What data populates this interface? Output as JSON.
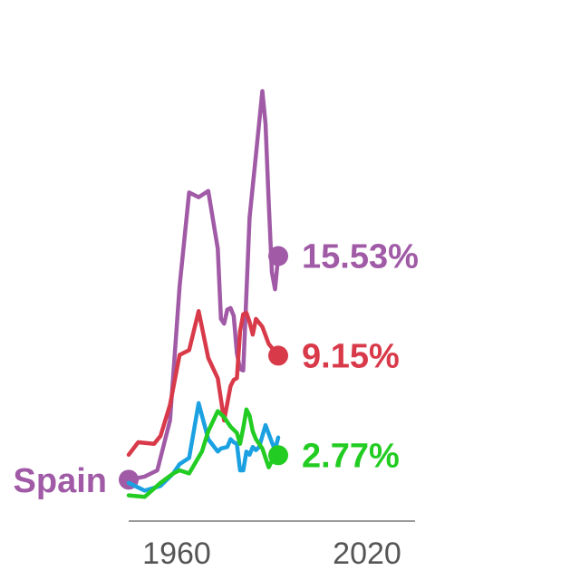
{
  "chart_data": {
    "type": "line",
    "title": "",
    "xlabel": "",
    "ylabel": "",
    "xlim": [
      1945,
      2035
    ],
    "ylim": [
      0,
      27
    ],
    "x_ticks": [
      "1960",
      "2020"
    ],
    "grid": false,
    "legend": "none",
    "start_label": {
      "text": "Spain",
      "color": "#a05aa6"
    },
    "series": [
      {
        "name": "Spain",
        "color": "#a05aa6",
        "end_label": "15.53%",
        "show_start_marker": true,
        "points": [
          [
            1945,
            1.2
          ],
          [
            1950,
            1.4
          ],
          [
            1954,
            1.8
          ],
          [
            1958,
            5.0
          ],
          [
            1961,
            13.6
          ],
          [
            1964,
            19.6
          ],
          [
            1967,
            19.3
          ],
          [
            1970,
            19.7
          ],
          [
            1973,
            16.0
          ],
          [
            1974,
            11.5
          ],
          [
            1975,
            11.2
          ],
          [
            1976,
            12.1
          ],
          [
            1977,
            12.2
          ],
          [
            1978,
            11.7
          ],
          [
            1979,
            9.3
          ],
          [
            1980,
            8.3
          ],
          [
            1981,
            8.2
          ],
          [
            1983,
            18.0
          ],
          [
            1985,
            22.0
          ],
          [
            1987,
            26.1
          ],
          [
            1988,
            24.0
          ],
          [
            1989,
            19.0
          ],
          [
            1990,
            14.5
          ],
          [
            1991,
            13.4
          ],
          [
            1992,
            15.53
          ]
        ]
      },
      {
        "name": "",
        "color": "#d93a4a",
        "end_label": "9.15%",
        "show_start_marker": false,
        "points": [
          [
            1945,
            2.8
          ],
          [
            1948,
            3.6
          ],
          [
            1953,
            3.5
          ],
          [
            1955,
            4.0
          ],
          [
            1958,
            6.0
          ],
          [
            1961,
            9.2
          ],
          [
            1964,
            9.5
          ],
          [
            1967,
            12.0
          ],
          [
            1970,
            9.0
          ],
          [
            1973,
            7.7
          ],
          [
            1975,
            5.0
          ],
          [
            1977,
            7.2
          ],
          [
            1978,
            7.6
          ],
          [
            1979,
            7.7
          ],
          [
            1980,
            10.7
          ],
          [
            1981,
            11.8
          ],
          [
            1982,
            11.9
          ],
          [
            1983,
            11.3
          ],
          [
            1984,
            10.5
          ],
          [
            1985,
            11.5
          ],
          [
            1987,
            11.0
          ],
          [
            1989,
            9.9
          ],
          [
            1992,
            9.15
          ]
        ]
      },
      {
        "name": "",
        "color": "#1ba1e2",
        "end_label": "",
        "show_start_marker": false,
        "points": [
          [
            1945,
            1.0
          ],
          [
            1950,
            0.5
          ],
          [
            1955,
            0.8
          ],
          [
            1959,
            1.6
          ],
          [
            1961,
            2.2
          ],
          [
            1964,
            2.6
          ],
          [
            1967,
            6.1
          ],
          [
            1970,
            3.8
          ],
          [
            1973,
            3.0
          ],
          [
            1974,
            3.2
          ],
          [
            1976,
            3.3
          ],
          [
            1977,
            3.8
          ],
          [
            1978,
            3.6
          ],
          [
            1979,
            3.5
          ],
          [
            1980,
            1.8
          ],
          [
            1981,
            1.8
          ],
          [
            1982,
            3.0
          ],
          [
            1983,
            2.8
          ],
          [
            1984,
            3.3
          ],
          [
            1985,
            3.1
          ],
          [
            1986,
            3.3
          ],
          [
            1988,
            4.7
          ],
          [
            1990,
            3.6
          ],
          [
            1991,
            3.1
          ],
          [
            1992,
            3.9
          ]
        ]
      },
      {
        "name": "",
        "color": "#22cc22",
        "end_label": "2.77%",
        "show_start_marker": false,
        "points": [
          [
            1945,
            0.2
          ],
          [
            1950,
            0.1
          ],
          [
            1955,
            1.0
          ],
          [
            1959,
            1.6
          ],
          [
            1961,
            1.8
          ],
          [
            1964,
            1.6
          ],
          [
            1968,
            3.0
          ],
          [
            1970,
            4.3
          ],
          [
            1973,
            5.6
          ],
          [
            1975,
            5.2
          ],
          [
            1977,
            4.6
          ],
          [
            1979,
            4.2
          ],
          [
            1980,
            3.5
          ],
          [
            1981,
            4.5
          ],
          [
            1982,
            5.7
          ],
          [
            1983,
            5.3
          ],
          [
            1984,
            4.3
          ],
          [
            1985,
            3.8
          ],
          [
            1987,
            3.2
          ],
          [
            1989,
            2.0
          ],
          [
            1990,
            2.4
          ],
          [
            1992,
            2.77
          ]
        ]
      }
    ]
  }
}
